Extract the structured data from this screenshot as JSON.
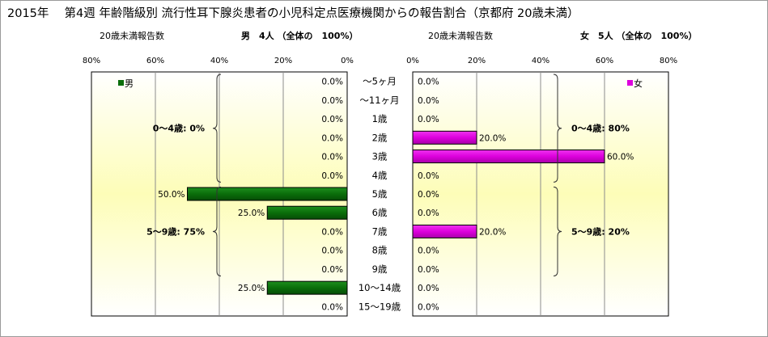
{
  "chart_data": {
    "type": "bar",
    "title": "2015年　 第4週 年齢階級別 流行性耳下腺炎患者の小児科定点医療機関からの報告割合（京都府 20歳未満）",
    "categories": [
      "～5ヶ月",
      "～11ヶ月",
      "1歳",
      "2歳",
      "3歳",
      "4歳",
      "5歳",
      "6歳",
      "7歳",
      "8歳",
      "9歳",
      "10～14歳",
      "15～19歳"
    ],
    "xlim": [
      0,
      80
    ],
    "x_ticks": [
      "80%",
      "60%",
      "40%",
      "20%",
      "0%"
    ],
    "x_ticks_right": [
      "0%",
      "20%",
      "40%",
      "60%",
      "80%"
    ],
    "series": [
      {
        "name": "男",
        "side": "left",
        "color": "#0a6e0a",
        "header_label": "20歳未満報告数",
        "header_total": "男　4人 （全体の　100%）",
        "values": [
          0,
          0,
          0,
          0,
          0,
          0,
          50,
          25,
          0,
          0,
          0,
          25,
          0
        ],
        "value_labels": [
          "0.0%",
          "0.0%",
          "0.0%",
          "0.0%",
          "0.0%",
          "0.0%",
          "50.0%",
          "25.0%",
          "0.0%",
          "0.0%",
          "0.0%",
          "25.0%",
          "0.0%"
        ],
        "annotations": [
          {
            "text": "0～4歳: 0%",
            "from": 0,
            "to": 5
          },
          {
            "text": "5～9歳: 75%",
            "from": 6,
            "to": 10
          }
        ]
      },
      {
        "name": "女",
        "side": "right",
        "color": "#dd00dd",
        "header_label": "20歳未満報告数",
        "header_total": "女　5人 （全体の　100%）",
        "values": [
          0,
          0,
          0,
          20,
          60,
          0,
          0,
          0,
          20,
          0,
          0,
          0,
          0
        ],
        "value_labels": [
          "0.0%",
          "0.0%",
          "0.0%",
          "20.0%",
          "60.0%",
          "0.0%",
          "0.0%",
          "0.0%",
          "20.0%",
          "0.0%",
          "0.0%",
          "0.0%",
          "0.0%"
        ],
        "annotations": [
          {
            "text": "0～4歳: 80%",
            "from": 0,
            "to": 5
          },
          {
            "text": "5～9歳: 20%",
            "from": 6,
            "to": 10
          }
        ]
      }
    ],
    "legend_position": "top-left / top-right of each panel",
    "grid": true
  }
}
